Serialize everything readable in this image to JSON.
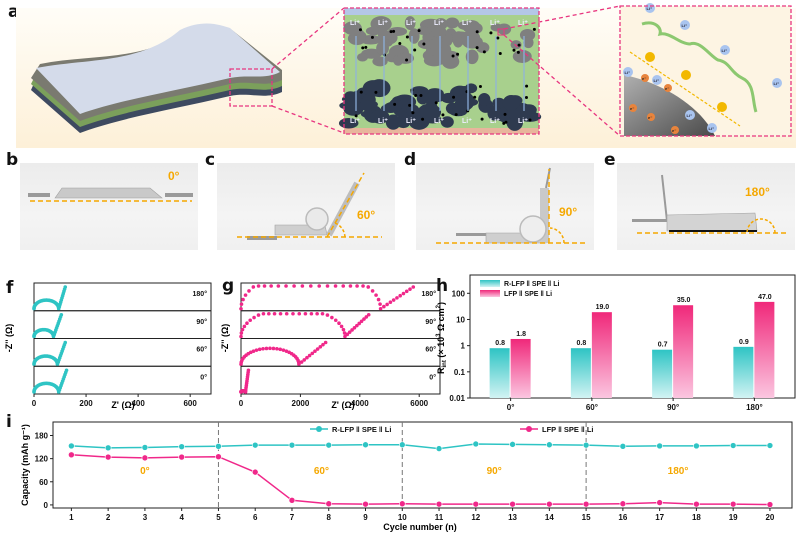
{
  "figure": {
    "panels": {
      "a": {
        "letter": "a",
        "schematic_labels": {
          "ion_label": "Li⁺",
          "cathode_ion_labels": [
            "Li⁺",
            "Li⁺",
            "Li⁺",
            "Li⁺",
            "Li⁺",
            "Li⁺",
            "Li⁺"
          ],
          "anode_ion_labels": [
            "Li⁺",
            "Li⁺",
            "Li⁺",
            "Li⁺",
            "Li⁺",
            "Li⁺",
            "Li⁺"
          ],
          "electron_label": "e⁻",
          "inset_ion_label": "Li⁺"
        },
        "colors": {
          "highlight_box": "#e8357f",
          "electrolyte": "#a8d08d",
          "cathode": "#7f7f7f",
          "anode": "#2e3a4f",
          "polymer": "#8cc870",
          "linker": "#f2b800"
        }
      },
      "b": {
        "letter": "b",
        "angle": "0°"
      },
      "c": {
        "letter": "c",
        "angle": "60°"
      },
      "d": {
        "letter": "d",
        "angle": "90°"
      },
      "e": {
        "letter": "e",
        "angle": "180°"
      },
      "f": {
        "letter": "f"
      },
      "g": {
        "letter": "g"
      },
      "h": {
        "letter": "h"
      },
      "i": {
        "letter": "i"
      }
    },
    "accent_color": "#f5a800"
  },
  "chart_data": [
    {
      "id": "f",
      "type": "scatter",
      "title": "",
      "xlabel": "Z' (Ω)",
      "ylabel": "-Z'' (Ω)",
      "xlim": [
        0,
        680
      ],
      "xticks": [
        "0",
        "200",
        "400",
        "600"
      ],
      "color": "#2ec4c4",
      "stack_labels": [
        "180°",
        "90°",
        "60°",
        "0°"
      ],
      "series": [
        {
          "name": "180°",
          "semicircle_end": 95,
          "tail_end": 120
        },
        {
          "name": "90°",
          "semicircle_end": 75,
          "tail_end": 105
        },
        {
          "name": "60°",
          "semicircle_end": 90,
          "tail_end": 120
        },
        {
          "name": "0°",
          "semicircle_end": 95,
          "tail_end": 125
        }
      ]
    },
    {
      "id": "g",
      "type": "scatter",
      "title": "",
      "xlabel": "Z' (Ω)",
      "ylabel": "-Z'' (Ω)",
      "xlim": [
        0,
        6700
      ],
      "xticks": [
        "0",
        "2000",
        "4000",
        "6000"
      ],
      "color": "#f0288a",
      "stack_labels": [
        "180°",
        "90°",
        "60°",
        "0°"
      ],
      "series": [
        {
          "name": "180°",
          "semicircle_end": 4700,
          "tail_end": 5800
        },
        {
          "name": "90°",
          "semicircle_end": 3500,
          "tail_end": 4300
        },
        {
          "name": "60°",
          "semicircle_end": 1950,
          "tail_end": 2850
        },
        {
          "name": "0°",
          "semicircle_end": 150,
          "tail_end": 250
        }
      ]
    },
    {
      "id": "h",
      "type": "bar",
      "title": "",
      "xlabel": "",
      "ylabel": "R_int (× 10^3 Ω cm^2)",
      "ylabel_parts": {
        "main": "R",
        "sub": "int",
        "rest": " (× 10",
        "sup1": "3",
        "unit": " Ω cm",
        "sup2": "2",
        "close": ")"
      },
      "yscale": "log",
      "ylim": [
        0.01,
        500
      ],
      "yticks": [
        "0.01",
        "0.1",
        "1",
        "10",
        "100"
      ],
      "categories": [
        "0°",
        "60°",
        "90°",
        "180°"
      ],
      "series": [
        {
          "name": "R-LFP ǁ SPE ǁ Li",
          "color": "#2ec4c4",
          "values": [
            0.8,
            0.8,
            0.7,
            0.9
          ],
          "labels": [
            "0.8",
            "0.8",
            "0.7",
            "0.9"
          ]
        },
        {
          "name": "LFP ǁ SPE ǁ Li",
          "color": "#f0288a",
          "values": [
            1.8,
            19.0,
            35.0,
            47.0
          ],
          "labels": [
            "1.8",
            "19.0",
            "35.0",
            "47.0"
          ]
        }
      ],
      "legend": "top-left"
    },
    {
      "id": "i",
      "type": "line",
      "title": "",
      "xlabel": "Cycle number (n)",
      "ylabel": "Capacity (mAh g⁻¹)",
      "xlim": [
        0.5,
        20.6
      ],
      "ylim": [
        -8,
        215
      ],
      "yticks": [
        "0",
        "60",
        "120",
        "180"
      ],
      "x": [
        1,
        2,
        3,
        4,
        5,
        6,
        7,
        8,
        9,
        10,
        11,
        12,
        13,
        14,
        15,
        16,
        17,
        18,
        19,
        20
      ],
      "series": [
        {
          "name": "R-LFP ǁ SPE ǁ Li",
          "color": "#2ec4c4",
          "values": [
            153,
            148,
            149,
            151,
            152,
            155,
            155,
            155,
            156,
            156,
            146,
            158,
            157,
            156,
            155,
            152,
            153,
            153,
            154,
            154
          ]
        },
        {
          "name": "LFP ǁ SPE ǁ Li",
          "color": "#f0288a",
          "values": [
            130,
            124,
            122,
            124,
            125,
            85,
            12,
            3,
            2,
            3,
            2,
            2,
            2,
            2,
            2,
            3,
            6,
            2,
            2,
            1
          ]
        }
      ],
      "dividers_at": [
        5,
        10,
        15
      ],
      "region_labels": [
        {
          "text": "0°",
          "x": 3
        },
        {
          "text": "60°",
          "x": 7.8
        },
        {
          "text": "90°",
          "x": 12.5
        },
        {
          "text": "180°",
          "x": 17.5
        }
      ],
      "legend": "top-right"
    }
  ]
}
